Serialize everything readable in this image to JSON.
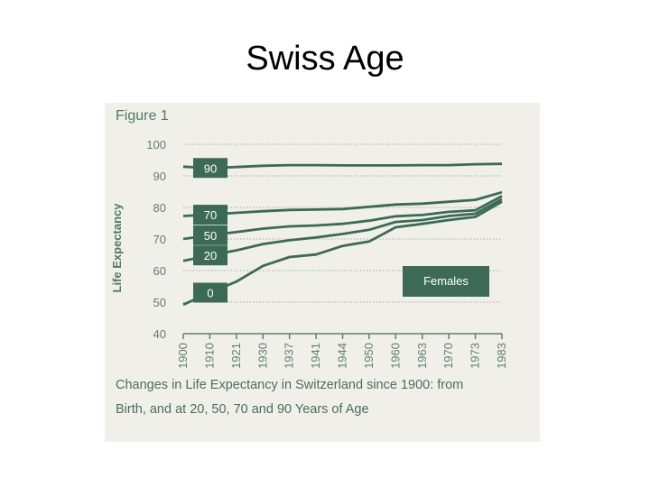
{
  "slide": {
    "title": "Swiss Age"
  },
  "figure": {
    "label": "Figure 1",
    "caption_line1": "Changes in Life Expectancy in Switzerland since 1900: from",
    "caption_line2": "Birth, and at 20, 50, 70 and 90 Years of Age"
  },
  "chart_data": {
    "type": "line",
    "title": "",
    "ylabel": "Life Expectancy",
    "xlabel": "",
    "ylim": [
      40,
      100
    ],
    "yticks": [
      40,
      50,
      60,
      70,
      80,
      90,
      100
    ],
    "grid": true,
    "legend": "Females",
    "categories": [
      "1900",
      "1910",
      "1921",
      "1930",
      "1937",
      "1941",
      "1944",
      "1950",
      "1960",
      "1963",
      "1970",
      "1973",
      "1983"
    ],
    "series": [
      {
        "name": "90",
        "values": [
          92.9,
          92.5,
          92.8,
          93.2,
          93.4,
          93.4,
          93.3,
          93.3,
          93.3,
          93.4,
          93.4,
          93.7,
          93.8
        ]
      },
      {
        "name": "70",
        "values": [
          77.3,
          77.7,
          78.3,
          78.8,
          79.2,
          79.3,
          79.5,
          80.2,
          80.9,
          81.2,
          81.8,
          82.4,
          84.8
        ]
      },
      {
        "name": "50",
        "values": [
          70.0,
          71.2,
          72.2,
          73.3,
          74.0,
          74.3,
          74.8,
          75.8,
          77.2,
          77.6,
          78.6,
          79.1,
          83.6
        ]
      },
      {
        "name": "20",
        "values": [
          63.1,
          64.8,
          66.4,
          68.4,
          69.6,
          70.5,
          71.6,
          72.9,
          75.4,
          76.0,
          77.3,
          78.0,
          82.6
        ]
      },
      {
        "name": "0",
        "values": [
          49.2,
          53.0,
          56.5,
          61.5,
          64.3,
          65.1,
          67.8,
          69.2,
          73.7,
          74.8,
          76.0,
          77.0,
          81.8
        ]
      }
    ],
    "colors": {
      "line": "#3c6a57",
      "label_box": "#3c6a57",
      "grid": "#9bb0a6",
      "axis": "#5d806f"
    }
  }
}
